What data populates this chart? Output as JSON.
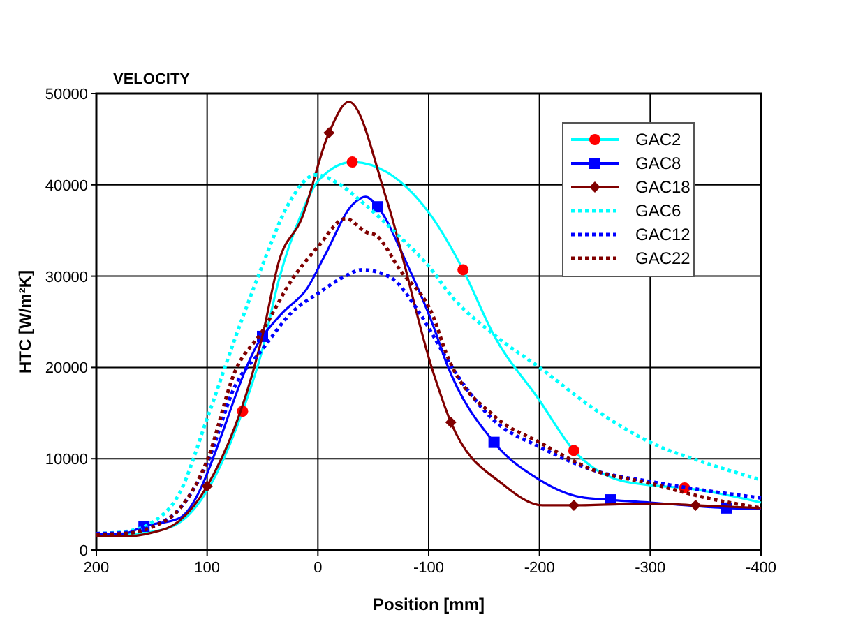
{
  "chart_data": {
    "type": "line",
    "title": "VELOCITY",
    "xlabel": "Position [mm]",
    "ylabel": "HTC [W/m²K]",
    "xlim": [
      200,
      -400
    ],
    "xticks": [
      200,
      100,
      0,
      -100,
      -200,
      -300,
      -400
    ],
    "ylim": [
      0,
      50000
    ],
    "yticks": [
      0,
      10000,
      20000,
      30000,
      40000,
      50000
    ],
    "grid": true,
    "legend": "top right",
    "series": [
      {
        "name": "GAC2",
        "type": "line",
        "line_style": "solid",
        "color": "#00ffff",
        "x": [
          175,
          150,
          125,
          100,
          68,
          50,
          35,
          15,
          0,
          -31,
          -62,
          -104,
          -131,
          -159,
          -200,
          -231,
          -268,
          -300,
          -331,
          -400
        ],
        "values": [
          1700,
          2000,
          3000,
          6500,
          15200,
          22000,
          29700,
          36800,
          40400,
          42500,
          41400,
          36300,
          30700,
          23500,
          16400,
          10900,
          7800,
          7100,
          6800,
          5200
        ]
      },
      {
        "type": "scatter",
        "marker": "circle",
        "color": "#ff0000",
        "x": [
          68,
          -31,
          -131,
          -231,
          -331
        ],
        "values": [
          15200,
          42500,
          30700,
          10900,
          6800
        ]
      },
      {
        "name": "GAC8",
        "type": "line",
        "line_style": "solid",
        "color": "#0000ff",
        "x": [
          200,
          175,
          157,
          125,
          50,
          31,
          10,
          -6,
          -31,
          -43,
          -54,
          -79,
          -104,
          -116,
          -159,
          -200,
          -237,
          -264,
          -300,
          -369,
          -400
        ],
        "values": [
          1700,
          1800,
          2600,
          3500,
          23400,
          26100,
          28600,
          32200,
          37800,
          38700,
          37600,
          31700,
          24600,
          20500,
          11800,
          7700,
          5800,
          5500,
          5200,
          4600,
          4500
        ]
      },
      {
        "type": "scatter",
        "marker": "square",
        "color": "#0000ff",
        "x": [
          157,
          50,
          -54,
          -159,
          -264,
          -369
        ],
        "values": [
          2600,
          23400,
          37600,
          11800,
          5500,
          4600
        ]
      },
      {
        "name": "GAC18",
        "type": "line",
        "line_style": "solid",
        "color": "#800000",
        "x": [
          200,
          175,
          150,
          125,
          100,
          50,
          35,
          15,
          -10,
          -28,
          -62,
          -104,
          -120,
          -167,
          -203,
          -231,
          -302,
          -341,
          -400
        ],
        "values": [
          1500,
          1500,
          1900,
          3200,
          7000,
          23500,
          31700,
          36200,
          45700,
          49100,
          38400,
          19500,
          14000,
          7200,
          4900,
          4900,
          5100,
          4900,
          4600
        ]
      },
      {
        "type": "scatter",
        "marker": "diamond",
        "color": "#800000",
        "x": [
          100,
          -10,
          -120,
          -231,
          -341
        ],
        "values": [
          7000,
          45700,
          14000,
          4900,
          4900
        ]
      },
      {
        "name": "GAC6",
        "type": "line",
        "line_style": "dotted",
        "color": "#00ffff",
        "x": [
          200,
          175,
          150,
          125,
          100,
          75,
          50,
          27,
          2,
          -19,
          -40,
          -74,
          -104,
          -116,
          -162,
          -200,
          -250,
          -300,
          -351,
          -400
        ],
        "values": [
          1800,
          2000,
          3000,
          6200,
          14400,
          23100,
          31200,
          37800,
          41100,
          40100,
          38100,
          34300,
          30500,
          28500,
          23300,
          20000,
          15400,
          11800,
          9500,
          7700
        ]
      },
      {
        "name": "GAC12",
        "type": "line",
        "line_style": "dotted",
        "color": "#0000ff",
        "x": [
          200,
          175,
          150,
          125,
          100,
          75,
          50,
          23,
          0,
          -23,
          -40,
          -65,
          -91,
          -104,
          -116,
          -159,
          -200,
          -250,
          -300,
          -351,
          -400
        ],
        "values": [
          1800,
          1900,
          2600,
          4500,
          9500,
          17900,
          22000,
          26100,
          28100,
          29900,
          30700,
          29900,
          26100,
          23500,
          21000,
          14200,
          11300,
          8700,
          7500,
          6500,
          5700
        ]
      },
      {
        "name": "GAC22",
        "type": "line",
        "line_style": "dotted",
        "color": "#800000",
        "x": [
          200,
          175,
          150,
          125,
          100,
          75,
          50,
          23,
          0,
          -25,
          -44,
          -52,
          -74,
          -104,
          -116,
          -160,
          -200,
          -250,
          -300,
          -351,
          -400
        ],
        "values": [
          1700,
          1800,
          2500,
          4500,
          9800,
          19500,
          24000,
          29700,
          33200,
          36300,
          34800,
          34500,
          30700,
          25600,
          21500,
          14600,
          11800,
          8700,
          7300,
          5700,
          4600
        ]
      }
    ]
  }
}
